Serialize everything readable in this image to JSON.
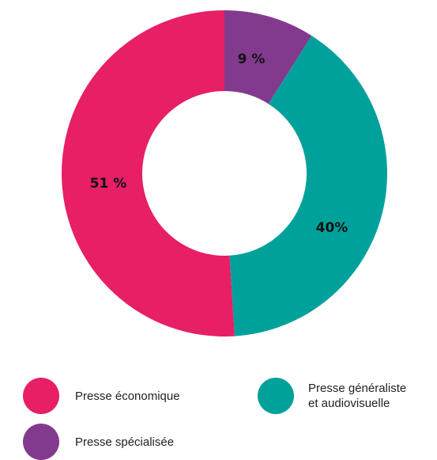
{
  "chart_data": {
    "type": "pie",
    "donut": true,
    "slices": [
      {
        "name": "Presse spécialisée",
        "value": 9,
        "label": "9 %",
        "color": "#823a8e"
      },
      {
        "name": "Presse généraliste\net audiovisuelle",
        "value": 40,
        "label": "40%",
        "color": "#00a19a"
      },
      {
        "name": "Presse économique",
        "value": 51,
        "label": "51 %",
        "color": "#e61f67"
      }
    ],
    "legend_position": "bottom"
  }
}
